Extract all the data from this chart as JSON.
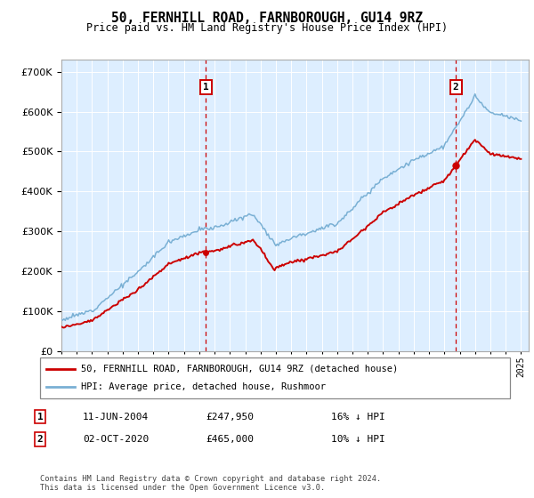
{
  "title": "50, FERNHILL ROAD, FARNBOROUGH, GU14 9RZ",
  "subtitle": "Price paid vs. HM Land Registry's House Price Index (HPI)",
  "legend_line1": "50, FERNHILL ROAD, FARNBOROUGH, GU14 9RZ (detached house)",
  "legend_line2": "HPI: Average price, detached house, Rushmoor",
  "annotation1_date": "11-JUN-2004",
  "annotation1_price": "£247,950",
  "annotation1_pct": "16% ↓ HPI",
  "annotation2_date": "02-OCT-2020",
  "annotation2_price": "£465,000",
  "annotation2_pct": "10% ↓ HPI",
  "footer": "Contains HM Land Registry data © Crown copyright and database right 2024.\nThis data is licensed under the Open Government Licence v3.0.",
  "red_color": "#cc0000",
  "blue_color": "#7ab0d4",
  "plot_bg": "#ddeeff",
  "sale1_year": 2004.44,
  "sale2_year": 2020.75,
  "sale1_price": 247950,
  "sale2_price": 465000,
  "ylim_min": 0,
  "ylim_max": 730000,
  "xmin": 1995,
  "xmax": 2025.5
}
